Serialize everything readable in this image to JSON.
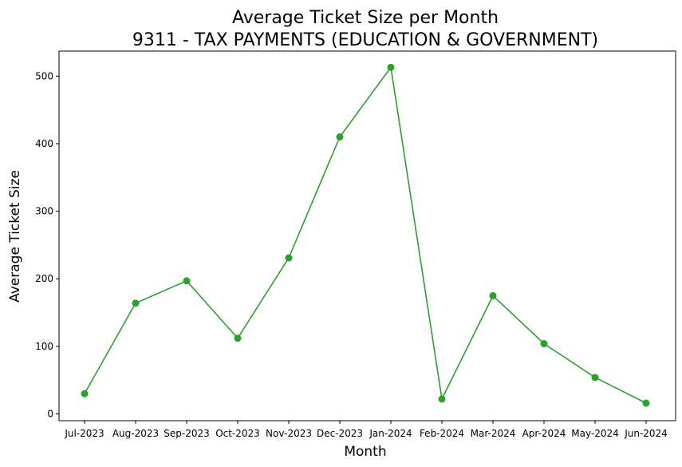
{
  "chart_data": {
    "type": "line",
    "title": "Average Ticket Size per Month",
    "subtitle": "9311 - TAX PAYMENTS (EDUCATION & GOVERNMENT)",
    "xlabel": "Month",
    "ylabel": "Average Ticket Size",
    "categories": [
      "Jul-2023",
      "Aug-2023",
      "Sep-2023",
      "Oct-2023",
      "Nov-2023",
      "Dec-2023",
      "Jan-2024",
      "Feb-2024",
      "Mar-2024",
      "Apr-2024",
      "May-2024",
      "Jun-2024"
    ],
    "values": [
      30,
      164,
      197,
      112,
      231,
      410,
      513,
      22,
      175,
      104,
      54,
      16
    ],
    "yticks": [
      0,
      100,
      200,
      300,
      400,
      500
    ],
    "ylim": [
      -10,
      537
    ],
    "grid": false,
    "legend": "none",
    "color": "#2ca02c",
    "marker": "circle"
  }
}
